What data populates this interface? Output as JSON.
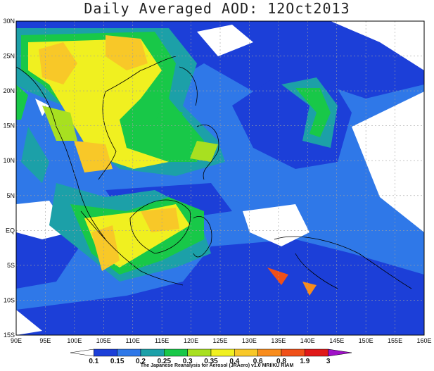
{
  "title": "Daily Averaged AOD: 12Oct2013",
  "credit": "The Japanese Reanalysis for Aerosol (JRAero) v1.0 MRI/KU RIAM",
  "lon_labels": [
    "90E",
    "95E",
    "100E",
    "105E",
    "110E",
    "115E",
    "120E",
    "125E",
    "130E",
    "135E",
    "140E",
    "145E",
    "150E",
    "155E",
    "160E"
  ],
  "lat_labels": [
    "30N",
    "25N",
    "20N",
    "15N",
    "10N",
    "5N",
    "EQ",
    "5S",
    "10S",
    "15S"
  ],
  "colorbar": {
    "labels": [
      "0.1",
      "0.15",
      "0.2",
      "0.25",
      "0.3",
      "0.35",
      "0.4",
      "0.6",
      "0.8",
      "1.9",
      "3"
    ],
    "colors": [
      "#ffffff",
      "#1c3fd8",
      "#2f78e8",
      "#1ca0a8",
      "#18c848",
      "#a8e020",
      "#f0f020",
      "#f8c828",
      "#f88c1c",
      "#f05018",
      "#e01818",
      "#a010c8"
    ]
  },
  "colors": {
    "ocean_low": "#2255e6",
    "land_line": "#000000",
    "grid": "#a0a0a0"
  }
}
